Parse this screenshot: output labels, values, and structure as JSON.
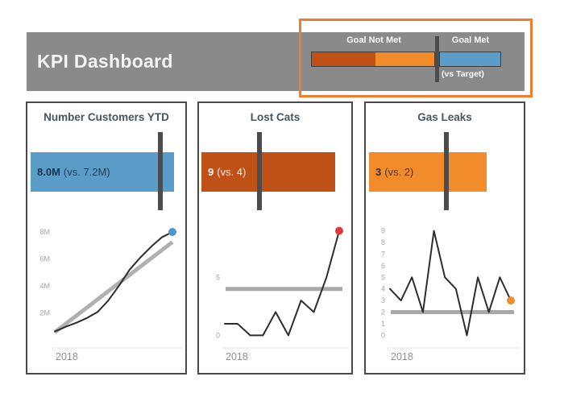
{
  "header": {
    "title": "KPI Dashboard"
  },
  "legend": {
    "goal_not_met_label": "Goal Not Met",
    "goal_met_label": "Goal Met",
    "vs_target_label": "(vs Target)",
    "colors": {
      "goal_not_met_worse": "#bf5117",
      "goal_not_met": "#f28c2b",
      "goal_met": "#5b9dc8",
      "target_line": "#4c4c4c",
      "highlight_border": "#ee7e2e",
      "header_bg": "#8a8a8a"
    }
  },
  "cards": [
    {
      "title": "Number Customers YTD",
      "value_label": "8.0M",
      "vs_label": "(vs. 7.2M)",
      "bar_color": "#5b9dc8"
    },
    {
      "title": "Lost Cats",
      "value_label": "9",
      "vs_label": "(vs. 4)",
      "bar_color": "#bf5117"
    },
    {
      "title": "Gas Leaks",
      "value_label": "3",
      "vs_label": "(vs. 2)",
      "bar_color": "#f28c2b"
    }
  ],
  "chart_data": [
    {
      "type": "line",
      "title": "Number Customers YTD",
      "x_axis_label": "2018",
      "current_value": 8.0,
      "target_value": 7.2,
      "unit": "M",
      "values": [
        0.6,
        0.95,
        1.25,
        1.6,
        2.05,
        2.9,
        4.0,
        5.2,
        6.1,
        6.9,
        7.6,
        8.0
      ],
      "target": {
        "type": "diagonal",
        "from": 0.55,
        "to": 7.25
      },
      "ylim": [
        -0.2,
        8.6
      ],
      "yticks": [
        {
          "v": 2,
          "label": "2M"
        },
        {
          "v": 4,
          "label": "4M"
        },
        {
          "v": 6,
          "label": "6M"
        },
        {
          "v": 8,
          "label": "8M"
        }
      ],
      "line_color": "#2d2d2d",
      "target_color": "#b0b0b0",
      "dot_color": "#4a97cf",
      "grid": false,
      "legend_position": "none"
    },
    {
      "type": "line",
      "title": "Lost Cats",
      "x_axis_label": "2018",
      "current_value": 9,
      "target_value": 4,
      "values": [
        1,
        1,
        0,
        0,
        2,
        0,
        3,
        2,
        5,
        9
      ],
      "target": {
        "type": "horizontal",
        "value": 4
      },
      "ylim": [
        -0.6,
        9.6
      ],
      "yticks": [
        {
          "v": 0,
          "label": "0"
        },
        {
          "v": 5,
          "label": "5"
        }
      ],
      "line_color": "#2d2d2d",
      "target_color": "#a8a8a8",
      "dot_color": "#e0393b",
      "grid": false,
      "legend_position": "none"
    },
    {
      "type": "line",
      "title": "Gas Leaks",
      "x_axis_label": "2018",
      "current_value": 3,
      "target_value": 2,
      "values": [
        4,
        3,
        5,
        2,
        9,
        5,
        4,
        0,
        5,
        2,
        5,
        3
      ],
      "target": {
        "type": "horizontal",
        "value": 2
      },
      "ylim": [
        -0.6,
        9.6
      ],
      "yticks": [
        {
          "v": 0,
          "label": "0"
        },
        {
          "v": 1,
          "label": "1"
        },
        {
          "v": 2,
          "label": "2"
        },
        {
          "v": 3,
          "label": "3"
        },
        {
          "v": 4,
          "label": "4"
        },
        {
          "v": 5,
          "label": "5"
        },
        {
          "v": 6,
          "label": "6"
        },
        {
          "v": 7,
          "label": "7"
        },
        {
          "v": 8,
          "label": "8"
        },
        {
          "v": 9,
          "label": "9"
        }
      ],
      "line_color": "#2d2d2d",
      "target_color": "#a8a8a8",
      "dot_color": "#f08d2b",
      "grid": false,
      "legend_position": "none"
    }
  ]
}
